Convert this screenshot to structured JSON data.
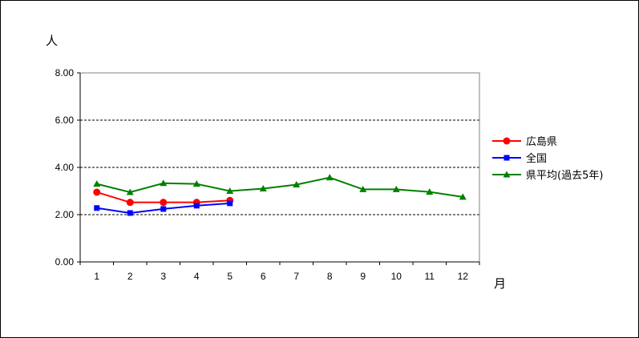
{
  "chart_data": {
    "type": "line",
    "ylabel": "人",
    "xlabel": "月",
    "categories": [
      "1",
      "2",
      "3",
      "4",
      "5",
      "6",
      "7",
      "8",
      "9",
      "10",
      "11",
      "12"
    ],
    "y_ticks": [
      "0.00",
      "2.00",
      "4.00",
      "6.00",
      "8.00"
    ],
    "ylim": [
      0,
      8
    ],
    "grid": "horizontal dashed",
    "legend_position": "right",
    "series": [
      {
        "name": "広島県",
        "color": "#ff0000",
        "marker": "circle",
        "values": [
          2.95,
          2.52,
          2.52,
          2.52,
          2.6,
          null,
          null,
          null,
          null,
          null,
          null,
          null
        ]
      },
      {
        "name": "全国",
        "color": "#0000ff",
        "marker": "square",
        "values": [
          2.28,
          2.07,
          2.24,
          2.38,
          2.48,
          null,
          null,
          null,
          null,
          null,
          null,
          null
        ]
      },
      {
        "name": "県平均(過去5年)",
        "color": "#008000",
        "marker": "triangle",
        "values": [
          3.3,
          2.95,
          3.33,
          3.3,
          3.0,
          3.1,
          3.27,
          3.57,
          3.07,
          3.07,
          2.96,
          2.75
        ]
      }
    ]
  }
}
